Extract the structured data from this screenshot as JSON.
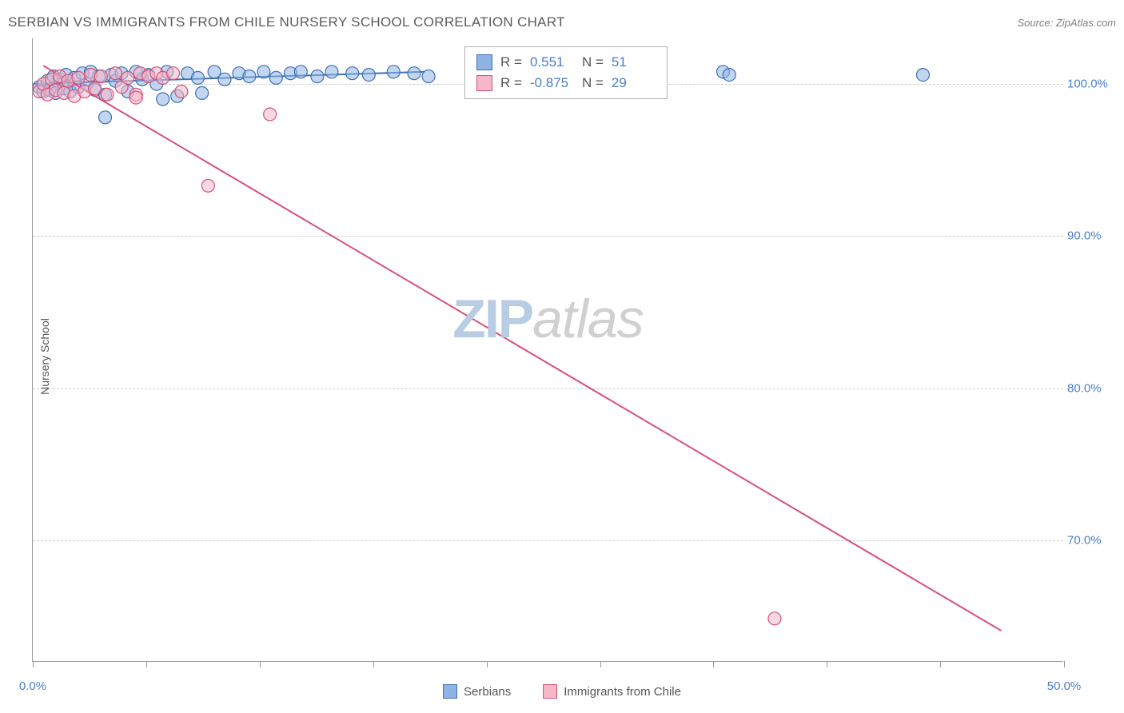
{
  "title": "SERBIAN VS IMMIGRANTS FROM CHILE NURSERY SCHOOL CORRELATION CHART",
  "source": "Source: ZipAtlas.com",
  "y_axis_label": "Nursery School",
  "watermark": {
    "part1": "ZIP",
    "part2": "atlas"
  },
  "colors": {
    "serbians_fill": "#8fb4e3",
    "serbians_stroke": "#3d6fb5",
    "chile_fill": "#f4b8c9",
    "chile_stroke": "#d94f78",
    "axis_text": "#4a7ec9",
    "grid": "#cccccc",
    "border": "#999999",
    "title_text": "#5a5a5a"
  },
  "chart": {
    "type": "scatter",
    "xlim": [
      0,
      50
    ],
    "ylim": [
      62,
      103
    ],
    "y_ticks": [
      70,
      80,
      90,
      100
    ],
    "y_tick_labels": [
      "70.0%",
      "80.0%",
      "90.0%",
      "100.0%"
    ],
    "x_ticks": [
      0,
      5.5,
      11,
      16.5,
      22,
      27.5,
      33,
      38.5,
      44,
      50
    ],
    "x_tick_labels": {
      "0": "0.0%",
      "50": "50.0%"
    },
    "marker_radius": 8,
    "marker_opacity": 0.55,
    "line_width": 2,
    "series": [
      {
        "name": "Serbians",
        "R": "0.551",
        "N": "51",
        "fill": "#8fb4e3",
        "stroke": "#3d6fb5",
        "trend": {
          "x1": 0,
          "y1": 100.0,
          "x2": 19,
          "y2": 100.8
        },
        "points": [
          [
            0.3,
            99.8
          ],
          [
            0.5,
            99.5
          ],
          [
            0.7,
            100.2
          ],
          [
            0.8,
            99.6
          ],
          [
            1.0,
            100.5
          ],
          [
            1.1,
            99.4
          ],
          [
            1.3,
            100.3
          ],
          [
            1.5,
            99.7
          ],
          [
            1.6,
            100.6
          ],
          [
            1.8,
            99.5
          ],
          [
            2.0,
            100.4
          ],
          [
            2.2,
            99.8
          ],
          [
            2.4,
            100.7
          ],
          [
            2.6,
            100.0
          ],
          [
            2.8,
            100.8
          ],
          [
            3.0,
            99.6
          ],
          [
            3.2,
            100.5
          ],
          [
            3.5,
            99.3
          ],
          [
            3.8,
            100.6
          ],
          [
            4.0,
            100.2
          ],
          [
            4.3,
            100.7
          ],
          [
            4.6,
            99.5
          ],
          [
            5.0,
            100.8
          ],
          [
            5.3,
            100.3
          ],
          [
            5.6,
            100.6
          ],
          [
            6.0,
            100.0
          ],
          [
            6.3,
            99.0
          ],
          [
            6.5,
            100.8
          ],
          [
            7.0,
            99.2
          ],
          [
            7.5,
            100.7
          ],
          [
            8.0,
            100.4
          ],
          [
            8.2,
            99.4
          ],
          [
            8.8,
            100.8
          ],
          [
            9.3,
            100.3
          ],
          [
            10.0,
            100.7
          ],
          [
            10.5,
            100.5
          ],
          [
            11.2,
            100.8
          ],
          [
            11.8,
            100.4
          ],
          [
            12.5,
            100.7
          ],
          [
            13.0,
            100.8
          ],
          [
            13.8,
            100.5
          ],
          [
            14.5,
            100.8
          ],
          [
            15.5,
            100.7
          ],
          [
            16.3,
            100.6
          ],
          [
            17.5,
            100.8
          ],
          [
            18.5,
            100.7
          ],
          [
            19.2,
            100.5
          ],
          [
            3.5,
            97.8
          ],
          [
            33.5,
            100.8
          ],
          [
            33.8,
            100.6
          ],
          [
            43.2,
            100.6
          ]
        ]
      },
      {
        "name": "Immigrants from Chile",
        "R": "-0.875",
        "N": "29",
        "fill": "#f4b8c9",
        "stroke": "#d94f78",
        "trend": {
          "x1": 0.5,
          "y1": 101.2,
          "x2": 47,
          "y2": 64.0
        },
        "points": [
          [
            0.3,
            99.5
          ],
          [
            0.5,
            100.0
          ],
          [
            0.7,
            99.3
          ],
          [
            0.9,
            100.3
          ],
          [
            1.1,
            99.6
          ],
          [
            1.3,
            100.5
          ],
          [
            1.5,
            99.4
          ],
          [
            1.7,
            100.2
          ],
          [
            2.0,
            99.2
          ],
          [
            2.2,
            100.4
          ],
          [
            2.5,
            99.5
          ],
          [
            2.8,
            100.6
          ],
          [
            3.0,
            99.7
          ],
          [
            3.3,
            100.5
          ],
          [
            3.6,
            99.3
          ],
          [
            4.0,
            100.7
          ],
          [
            4.3,
            99.8
          ],
          [
            4.6,
            100.4
          ],
          [
            5.0,
            99.3
          ],
          [
            5.2,
            100.7
          ],
          [
            5.6,
            100.5
          ],
          [
            6.0,
            100.7
          ],
          [
            6.3,
            100.4
          ],
          [
            6.8,
            100.7
          ],
          [
            7.2,
            99.5
          ],
          [
            5.0,
            99.1
          ],
          [
            11.5,
            98.0
          ],
          [
            8.5,
            93.3
          ],
          [
            36.0,
            64.8
          ]
        ]
      }
    ]
  },
  "stats_box": {
    "rows": [
      {
        "swatch_fill": "#8fb4e3",
        "swatch_stroke": "#3d6fb5",
        "r_label": "R =",
        "r_val": "0.551",
        "n_label": "N =",
        "n_val": "51"
      },
      {
        "swatch_fill": "#f4b8c9",
        "swatch_stroke": "#d94f78",
        "r_label": "R =",
        "r_val": "-0.875",
        "n_label": "N =",
        "n_val": "29"
      }
    ]
  },
  "legend": [
    {
      "label": "Serbians",
      "fill": "#8fb4e3",
      "stroke": "#3d6fb5"
    },
    {
      "label": "Immigrants from Chile",
      "fill": "#f4b8c9",
      "stroke": "#d94f78"
    }
  ]
}
